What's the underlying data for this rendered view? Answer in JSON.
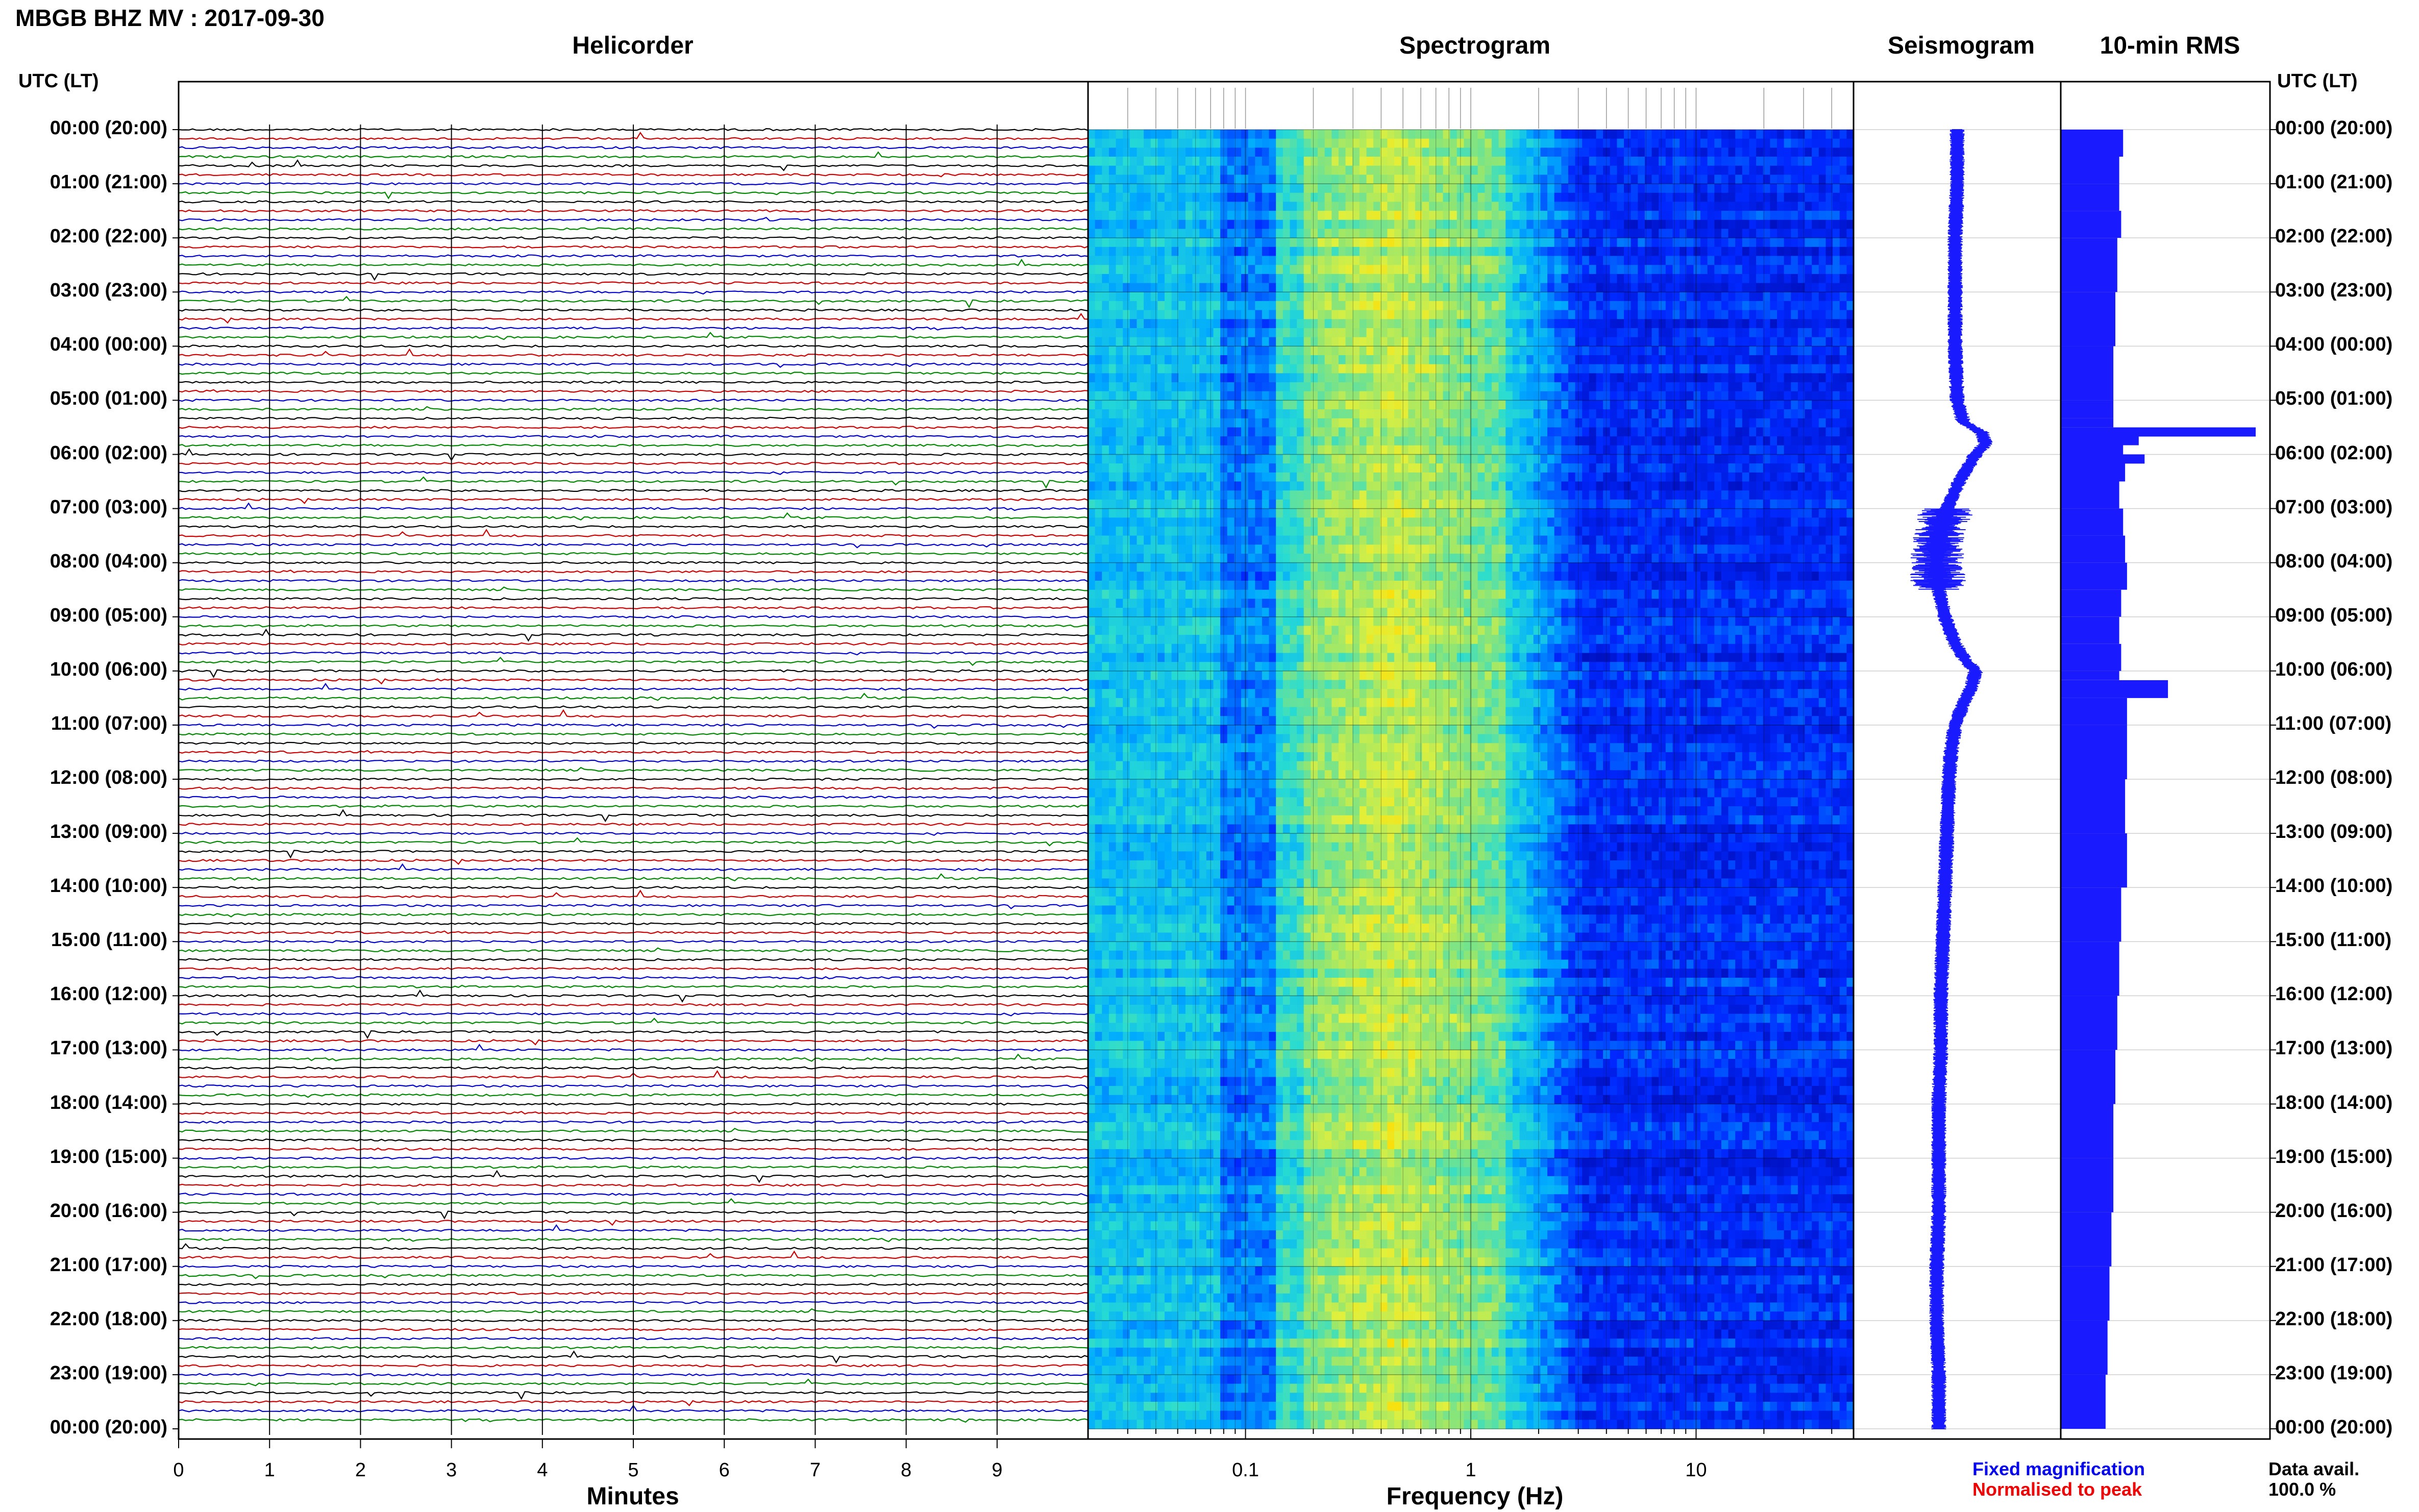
{
  "header": {
    "title": "MBGB BHZ MV : 2017-09-30"
  },
  "panels": {
    "helicorder": "Helicorder",
    "spectrogram": "Spectrogram",
    "seismogram": "Seismogram",
    "rms": "10-min RMS"
  },
  "axis_headers": {
    "left": "UTC (LT)",
    "right": "UTC (LT)"
  },
  "time_ticks": [
    "00:00 (20:00)",
    "01:00 (21:00)",
    "02:00 (22:00)",
    "03:00 (23:00)",
    "04:00 (00:00)",
    "05:00 (01:00)",
    "06:00 (02:00)",
    "07:00 (03:00)",
    "08:00 (04:00)",
    "09:00 (05:00)",
    "10:00 (06:00)",
    "11:00 (07:00)",
    "12:00 (08:00)",
    "13:00 (09:00)",
    "14:00 (10:00)",
    "15:00 (11:00)",
    "16:00 (12:00)",
    "17:00 (13:00)",
    "18:00 (14:00)",
    "19:00 (15:00)",
    "20:00 (16:00)",
    "21:00 (17:00)",
    "22:00 (18:00)",
    "23:00 (19:00)",
    "00:00 (20:00)"
  ],
  "x_axes": {
    "minutes": {
      "label": "Minutes",
      "ticks": [
        "0",
        "1",
        "2",
        "3",
        "4",
        "5",
        "6",
        "7",
        "8",
        "9"
      ]
    },
    "frequency": {
      "label": "Frequency (Hz)",
      "ticks": [
        "0.1",
        "1",
        "10"
      ]
    }
  },
  "legend": {
    "fixed": "Fixed magnification",
    "normalised": "Normalised to peak",
    "fixed_color": "#0000ee",
    "normalised_color": "#ee0000"
  },
  "data_availability": {
    "label": "Data avail.",
    "value": "100.0 %"
  },
  "trace_colors": [
    "#000000",
    "#cc0000",
    "#0000cc",
    "#008800"
  ],
  "chart_data": [
    {
      "type": "line",
      "name": "helicorder",
      "xlabel": "Minutes",
      "xlim": [
        0,
        10
      ],
      "rows_per_hour": 6,
      "hours": 24,
      "notes": "stacked 10-minute seismic traces, colours cycling black, red, blue, green"
    },
    {
      "type": "heatmap",
      "name": "spectrogram",
      "xlabel": "Frequency (Hz)",
      "x_scale": "log",
      "xlim": [
        0.02,
        50
      ]
    },
    {
      "type": "line",
      "name": "seismogram",
      "time_hours": [
        0,
        1,
        2,
        3,
        4,
        5,
        5.4,
        5.6,
        5.8,
        6,
        6.5,
        7,
        7.5,
        8,
        8.5,
        9,
        9.5,
        9.8,
        10,
        10.3,
        10.6,
        11,
        11.5,
        12,
        13,
        14,
        15,
        16,
        17,
        18,
        19,
        20,
        21,
        22,
        23,
        24
      ],
      "offset": [
        0,
        0,
        -0.1,
        -0.1,
        -0.1,
        0,
        0.3,
        1.2,
        1.4,
        0.9,
        0.1,
        -0.5,
        -0.9,
        -1.0,
        -0.9,
        -0.6,
        -0.1,
        0.4,
        0.9,
        0.7,
        0.3,
        -0.1,
        -0.3,
        -0.4,
        -0.5,
        -0.6,
        -0.7,
        -0.8,
        -0.8,
        -0.9,
        -0.9,
        -0.9,
        -1.0,
        -1.0,
        -0.9,
        -0.9
      ]
    },
    {
      "type": "bar",
      "name": "10-min RMS",
      "orientation": "horizontal",
      "time_hours": [
        0,
        0.5,
        1,
        1.5,
        2,
        3,
        4,
        5,
        5.33,
        5.5,
        5.67,
        5.83,
        6,
        6.17,
        6.5,
        7,
        7.5,
        8,
        8.5,
        9,
        9.5,
        10,
        10.17,
        10.5,
        11,
        12,
        13,
        14,
        15,
        16,
        17,
        18,
        19,
        20,
        21,
        22,
        23
      ],
      "values": [
        0.32,
        0.3,
        0.3,
        0.31,
        0.29,
        0.28,
        0.27,
        0.27,
        0.27,
        1.0,
        0.4,
        0.32,
        0.43,
        0.33,
        0.3,
        0.32,
        0.33,
        0.34,
        0.31,
        0.3,
        0.31,
        0.3,
        0.55,
        0.34,
        0.34,
        0.33,
        0.34,
        0.31,
        0.3,
        0.29,
        0.28,
        0.27,
        0.27,
        0.26,
        0.25,
        0.24,
        0.23
      ]
    }
  ]
}
